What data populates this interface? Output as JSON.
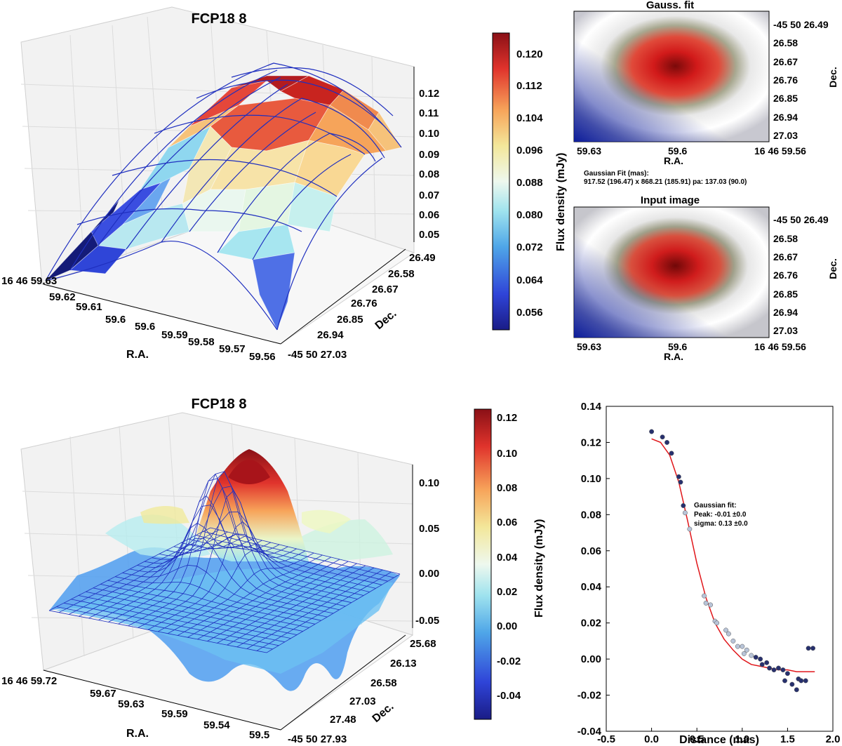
{
  "colors": {
    "wire": "#1f2fbf",
    "fit_line": "#e0161a",
    "point_dark": "#27306e",
    "point_light": "#b8c4d8"
  },
  "panels": {
    "top_3d": {
      "title": "FCP18 8",
      "xlabel": "R.A.",
      "ylabel": "Dec.",
      "x_ticks": [
        "16 46 59.63",
        "59.62",
        "59.61",
        "59.6",
        "59.6",
        "59.59",
        "59.58",
        "59.57",
        "59.56"
      ],
      "y_ticks": [
        "26.49",
        "26.58",
        "26.67",
        "26.76",
        "26.85",
        "26.94",
        "-45 50 27.03"
      ],
      "z_ticks": [
        "0.12",
        "0.11",
        "0.10",
        "0.09",
        "0.08",
        "0.07",
        "0.06",
        "0.05"
      ]
    },
    "top_colorbar": {
      "label": "Flux density (mJy)",
      "ticks": [
        "0.120",
        "0.112",
        "0.104",
        "0.096",
        "0.088",
        "0.080",
        "0.072",
        "0.064",
        "0.056"
      ]
    },
    "gauss_image": {
      "title": "Gauss. fit",
      "xlabel": "R.A.",
      "ylabel": "Dec.",
      "x_ticks": [
        "59.63",
        "59.6",
        "16 46 59.56"
      ],
      "y_ticks": [
        "-45 50 26.49",
        "26.58",
        "26.67",
        "26.76",
        "26.85",
        "26.94",
        "27.03"
      ],
      "fit_text_1": "Gaussian Fit (mas):",
      "fit_text_2": "917.52 (196.47) x 868.21 (185.91) pa: 137.03 (90.0)"
    },
    "input_image": {
      "title": "Input image",
      "xlabel": "R.A.",
      "ylabel": "Dec.",
      "x_ticks": [
        "59.63",
        "59.6",
        "16 46 59.56"
      ],
      "y_ticks": [
        "-45 50 26.49",
        "26.58",
        "26.67",
        "26.76",
        "26.85",
        "26.94",
        "27.03"
      ]
    },
    "bottom_3d": {
      "title": "FCP18 8",
      "xlabel": "R.A.",
      "ylabel": "Dec.",
      "x_ticks": [
        "16 46 59.72",
        "59.67",
        "59.63",
        "59.59",
        "59.54",
        "59.5"
      ],
      "y_ticks": [
        "25.68",
        "26.13",
        "26.58",
        "27.03",
        "27.48",
        "-45 50 27.93"
      ],
      "z_ticks": [
        "0.10",
        "0.05",
        "0.00",
        "-0.05"
      ]
    },
    "bottom_colorbar": {
      "label": "Flux density (mJy)",
      "ticks": [
        "0.12",
        "0.10",
        "0.08",
        "0.06",
        "0.04",
        "0.02",
        "0.00",
        "-0.02",
        "-0.04"
      ]
    },
    "profile": {
      "xlabel": "Distance (mas)",
      "ann_1": "Gaussian fit:",
      "ann_2": "Peak: -0.01 ±0.0",
      "ann_3": "sigma: 0.13 ±0.0"
    }
  },
  "chart_data": [
    {
      "type": "surface",
      "title": "FCP18 8",
      "xlabel": "R.A.",
      "ylabel": "Dec.",
      "zlim": [
        0.05,
        0.125
      ]
    },
    {
      "type": "heatmap",
      "title": "Gauss. fit",
      "xlabel": "R.A.",
      "ylabel": "Dec."
    },
    {
      "type": "heatmap",
      "title": "Input image",
      "xlabel": "R.A.",
      "ylabel": "Dec."
    },
    {
      "type": "surface",
      "title": "FCP18 8",
      "xlabel": "R.A.",
      "ylabel": "Dec.",
      "zlim": [
        -0.05,
        0.125
      ]
    },
    {
      "type": "scatter",
      "xlabel": "Distance (mas)",
      "xlim": [
        -0.5,
        2.0
      ],
      "ylim": [
        -0.04,
        0.14
      ],
      "x_ticks": [
        -0.5,
        0.0,
        0.5,
        1.0,
        1.5,
        2.0
      ],
      "y_ticks": [
        -0.04,
        -0.02,
        0.0,
        0.02,
        0.04,
        0.06,
        0.08,
        0.1,
        0.12,
        0.14
      ],
      "points": [
        [
          0.0,
          0.126
        ],
        [
          0.12,
          0.123
        ],
        [
          0.17,
          0.12
        ],
        [
          0.22,
          0.114
        ],
        [
          0.3,
          0.101
        ],
        [
          0.32,
          0.098
        ],
        [
          0.35,
          0.085
        ],
        [
          0.37,
          0.081
        ],
        [
          0.42,
          0.072
        ],
        [
          0.58,
          0.035
        ],
        [
          0.6,
          0.031
        ],
        [
          0.65,
          0.03
        ],
        [
          0.7,
          0.021
        ],
        [
          0.72,
          0.02
        ],
        [
          0.82,
          0.016
        ],
        [
          0.85,
          0.014
        ],
        [
          0.9,
          0.01
        ],
        [
          0.95,
          0.007
        ],
        [
          1.0,
          0.007
        ],
        [
          1.02,
          0.003
        ],
        [
          1.05,
          0.005
        ],
        [
          1.1,
          0.002
        ],
        [
          1.15,
          0.001
        ],
        [
          1.2,
          0.0
        ],
        [
          1.22,
          -0.003
        ],
        [
          1.27,
          -0.002
        ],
        [
          1.3,
          -0.005
        ],
        [
          1.35,
          -0.006
        ],
        [
          1.4,
          -0.005
        ],
        [
          1.45,
          -0.006
        ],
        [
          1.47,
          -0.012
        ],
        [
          1.5,
          -0.008
        ],
        [
          1.55,
          -0.014
        ],
        [
          1.6,
          -0.017
        ],
        [
          1.62,
          -0.011
        ],
        [
          1.65,
          -0.012
        ],
        [
          1.7,
          -0.012
        ],
        [
          1.73,
          0.006
        ],
        [
          1.78,
          0.006
        ]
      ],
      "fit_curve": [
        [
          0.0,
          0.122
        ],
        [
          0.1,
          0.12
        ],
        [
          0.2,
          0.113
        ],
        [
          0.3,
          0.098
        ],
        [
          0.4,
          0.076
        ],
        [
          0.5,
          0.053
        ],
        [
          0.6,
          0.034
        ],
        [
          0.7,
          0.02
        ],
        [
          0.8,
          0.011
        ],
        [
          0.9,
          0.005
        ],
        [
          1.0,
          0.0
        ],
        [
          1.1,
          -0.003
        ],
        [
          1.2,
          -0.004
        ],
        [
          1.3,
          -0.005
        ],
        [
          1.4,
          -0.006
        ],
        [
          1.5,
          -0.006
        ],
        [
          1.6,
          -0.007
        ],
        [
          1.7,
          -0.007
        ],
        [
          1.8,
          -0.007
        ]
      ],
      "annotation": [
        "Gaussian fit:",
        "Peak: -0.01 ±0.0",
        "sigma: 0.13 ±0.0"
      ]
    }
  ]
}
